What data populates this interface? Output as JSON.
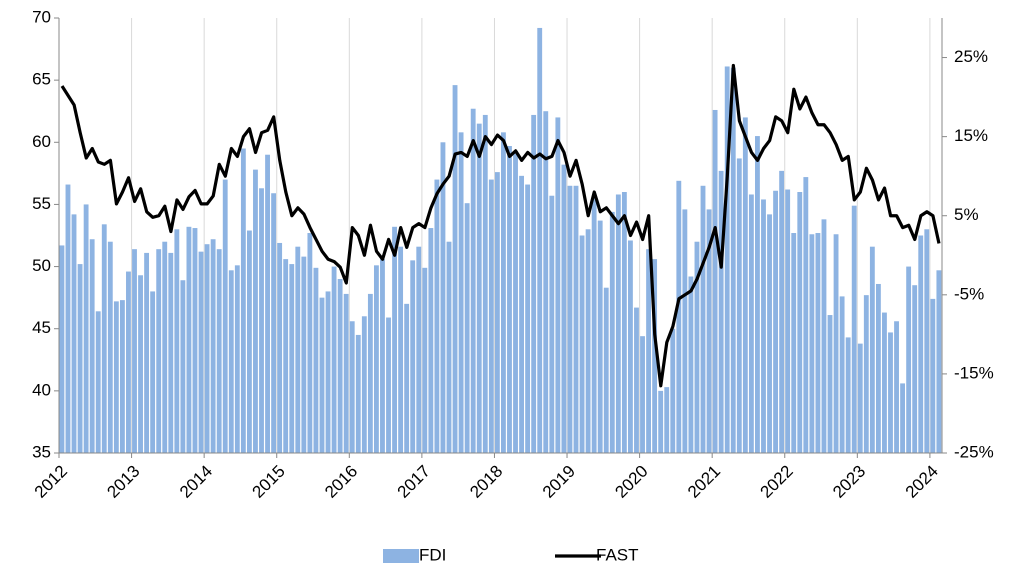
{
  "chart_data": {
    "type": "bar",
    "categories": [
      "2012",
      null,
      null,
      null,
      null,
      null,
      null,
      null,
      null,
      null,
      null,
      null,
      "2013",
      null,
      null,
      null,
      null,
      null,
      null,
      null,
      null,
      null,
      null,
      null,
      "2014",
      null,
      null,
      null,
      null,
      null,
      null,
      null,
      null,
      null,
      null,
      null,
      "2015",
      null,
      null,
      null,
      null,
      null,
      null,
      null,
      null,
      null,
      null,
      null,
      "2016",
      null,
      null,
      null,
      null,
      null,
      null,
      null,
      null,
      null,
      null,
      null,
      "2017",
      null,
      null,
      null,
      null,
      null,
      null,
      null,
      null,
      null,
      null,
      null,
      "2018",
      null,
      null,
      null,
      null,
      null,
      null,
      null,
      null,
      null,
      null,
      null,
      "2019",
      null,
      null,
      null,
      null,
      null,
      null,
      null,
      null,
      null,
      null,
      null,
      "2020",
      null,
      null,
      null,
      null,
      null,
      null,
      null,
      null,
      null,
      null,
      null,
      "2021",
      null,
      null,
      null,
      null,
      null,
      null,
      null,
      null,
      null,
      null,
      null,
      "2022",
      null,
      null,
      null,
      null,
      null,
      null,
      null,
      null,
      null,
      null,
      null,
      "2023",
      null,
      null,
      null,
      null,
      null,
      null,
      null,
      null,
      null,
      null,
      null,
      "2024",
      null
    ],
    "series": [
      {
        "name": "FDI",
        "type": "bar",
        "color": "#8db3e2",
        "values": [
          51.7,
          56.6,
          54.2,
          50.2,
          55.0,
          52.2,
          46.4,
          53.4,
          52.0,
          47.2,
          47.3,
          49.6,
          51.4,
          49.3,
          51.1,
          48.0,
          51.4,
          52.0,
          51.1,
          53.0,
          48.9,
          53.2,
          53.1,
          51.2,
          51.8,
          52.2,
          51.4,
          57.0,
          49.7,
          50.1,
          59.5,
          52.9,
          57.8,
          56.3,
          59.0,
          55.9,
          51.9,
          50.6,
          50.2,
          51.6,
          50.8,
          52.7,
          49.9,
          47.5,
          48.0,
          50.0,
          49.0,
          47.8,
          45.6,
          44.5,
          46.0,
          47.8,
          50.1,
          50.6,
          45.9,
          53.2,
          51.6,
          47.0,
          50.5,
          51.6,
          49.9,
          53.1,
          57.0,
          60.0,
          52.0,
          64.6,
          60.8,
          55.1,
          62.7,
          61.5,
          62.2,
          57.0,
          57.6,
          60.8,
          59.7,
          59.3,
          57.3,
          56.6,
          62.2,
          69.2,
          62.5,
          55.7,
          62.0,
          58.2,
          56.5,
          56.5,
          52.5,
          53.0,
          55.6,
          53.7,
          48.3,
          54.4,
          55.8,
          56.0,
          52.1,
          46.7,
          44.4,
          51.4,
          50.6,
          40.0,
          40.3,
          45.0,
          56.9,
          54.6,
          49.2,
          52.0,
          56.5,
          54.6,
          62.6,
          57.7,
          66.1,
          66.0,
          58.7,
          62.0,
          55.8,
          60.5,
          55.4,
          54.2,
          56.1,
          57.7,
          56.2,
          52.7,
          56.0,
          57.2,
          52.6,
          52.7,
          53.8,
          46.1,
          52.6,
          47.6,
          44.3,
          54.9,
          43.8,
          47.7,
          51.6,
          48.6,
          46.3,
          44.7,
          45.6,
          40.6,
          50.0,
          48.5,
          52.5,
          53.0,
          47.4,
          49.7
        ]
      },
      {
        "name": "FAST",
        "type": "line",
        "axis": "y2",
        "color": "#000000",
        "values": [
          21.4,
          20.2,
          19.0,
          15.5,
          12.3,
          13.5,
          11.8,
          11.5,
          12.0,
          6.5,
          8.0,
          9.8,
          6.8,
          8.4,
          5.5,
          4.8,
          5.0,
          6.2,
          3.0,
          7.0,
          5.8,
          7.4,
          8.2,
          6.5,
          6.5,
          7.5,
          11.5,
          10.0,
          13.5,
          12.5,
          15.0,
          16.0,
          13.0,
          15.5,
          15.8,
          17.5,
          12.0,
          8.0,
          5.0,
          6.0,
          5.2,
          3.5,
          2.0,
          0.5,
          -0.5,
          -0.8,
          -1.5,
          -3.5,
          3.5,
          2.5,
          0.0,
          3.8,
          0.5,
          -0.5,
          2.0,
          0.0,
          3.5,
          1.0,
          3.5,
          4.0,
          3.5,
          6.0,
          7.8,
          9.0,
          10.0,
          12.8,
          13.0,
          12.5,
          14.5,
          12.5,
          15.0,
          14.0,
          15.2,
          14.5,
          12.5,
          13.2,
          12.0,
          13.0,
          12.3,
          12.8,
          12.2,
          12.5,
          14.5,
          13.0,
          10.0,
          12.0,
          9.0,
          5.0,
          8.0,
          5.5,
          6.0,
          5.0,
          4.0,
          5.0,
          2.5,
          4.2,
          2.0,
          5.0,
          -10.0,
          -16.5,
          -11.0,
          -9.0,
          -5.5,
          -5.0,
          -4.5,
          -3.0,
          -1.0,
          1.0,
          3.5,
          -1.5,
          10.0,
          24.0,
          17.0,
          15.0,
          13.0,
          12.0,
          13.5,
          14.5,
          17.5,
          17.0,
          15.5,
          21.0,
          18.5,
          20.0,
          18.0,
          16.5,
          16.5,
          15.5,
          14.0,
          12.0,
          12.5,
          7.0,
          8.0,
          11.0,
          9.5,
          7.0,
          8.5,
          5.0,
          5.0,
          3.5,
          3.8,
          2.0,
          5.0,
          5.5,
          5.0,
          1.5
        ]
      }
    ],
    "ylim": [
      35,
      70
    ],
    "yticks": [
      35,
      40,
      45,
      50,
      55,
      60,
      65,
      70
    ],
    "y2lim": [
      -25,
      30
    ],
    "y2ticks": [
      {
        "value": -25,
        "label": "-25%"
      },
      {
        "value": -15,
        "label": "-15%"
      },
      {
        "value": -5,
        "label": "-5%"
      },
      {
        "value": 5,
        "label": "5%"
      },
      {
        "value": 15,
        "label": "15%"
      },
      {
        "value": 25,
        "label": "25%"
      }
    ],
    "grid": "vertical",
    "legend": "bottom"
  }
}
